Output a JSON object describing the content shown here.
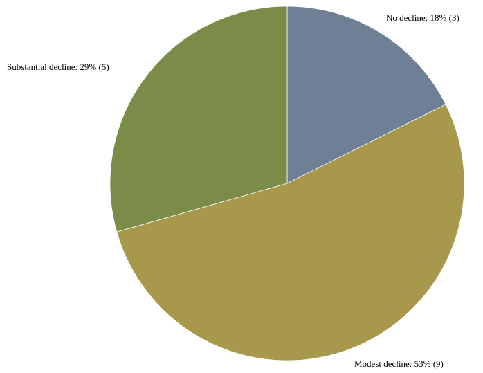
{
  "chart_data": {
    "type": "pie",
    "start_angle_deg": 0,
    "direction": "clockwise",
    "slices": [
      {
        "label": "No decline: 18% (3)",
        "category": "No decline",
        "percent": 18,
        "count": 3,
        "color": "#6e7f96"
      },
      {
        "label": "Modest decline: 53% (9)",
        "category": "Modest decline",
        "percent": 53,
        "count": 9,
        "color": "#a8984b"
      },
      {
        "label": "Substantial decline: 29% (5)",
        "category": "Substantial decline",
        "percent": 29,
        "count": 5,
        "color": "#7a8c47"
      }
    ]
  }
}
